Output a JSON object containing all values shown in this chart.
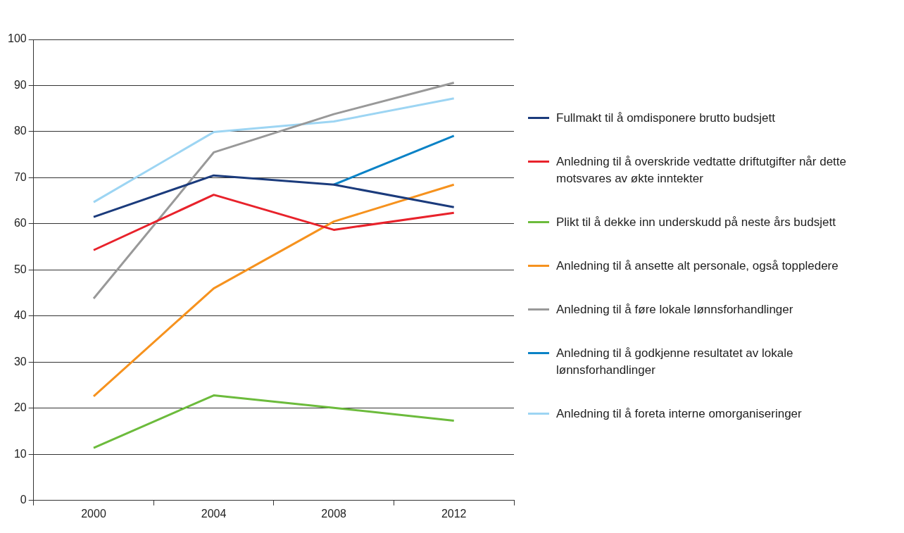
{
  "chart_data": {
    "type": "line",
    "categories": [
      "2000",
      "2004",
      "2008",
      "2012"
    ],
    "series": [
      {
        "name": "Fullmakt til å omdisponere brutto budsjett",
        "color": "#1b3b7c",
        "values": [
          61.5,
          70.5,
          68.5,
          63.6
        ]
      },
      {
        "name": "Anledning til å overskride vedtatte driftutgifter når dette motsvares av økte inntekter",
        "color": "#e8222b",
        "values": [
          54.3,
          66.3,
          58.7,
          62.4
        ]
      },
      {
        "name": "Plikt til å dekke inn underskudd på neste års budsjett",
        "color": "#6cbb3c",
        "values": [
          11.4,
          22.8,
          20.1,
          17.3
        ]
      },
      {
        "name": "Anledning til å ansette alt personale, også toppledere",
        "color": "#f6921e",
        "values": [
          22.6,
          46.0,
          60.5,
          68.5
        ]
      },
      {
        "name": "Anledning til å føre lokale lønnsforhandlinger",
        "color": "#999999",
        "values": [
          43.8,
          75.5,
          83.8,
          90.6
        ]
      },
      {
        "name": "Anledning til å godkjenne resultatet av lokale lønnsforhandlinger",
        "color": "#0a82c6",
        "values": [
          null,
          null,
          68.5,
          79.1
        ]
      },
      {
        "name": "Anledning til å foreta interne omorganiseringer",
        "color": "#9dd5f3",
        "values": [
          64.7,
          79.9,
          82.2,
          87.2
        ]
      }
    ],
    "ylim": [
      0,
      100
    ],
    "yticks": [
      0,
      10,
      20,
      30,
      40,
      50,
      60,
      70,
      80,
      90,
      100
    ],
    "grid": "y",
    "legend": "right",
    "marker": "none",
    "line_style": "solid"
  }
}
